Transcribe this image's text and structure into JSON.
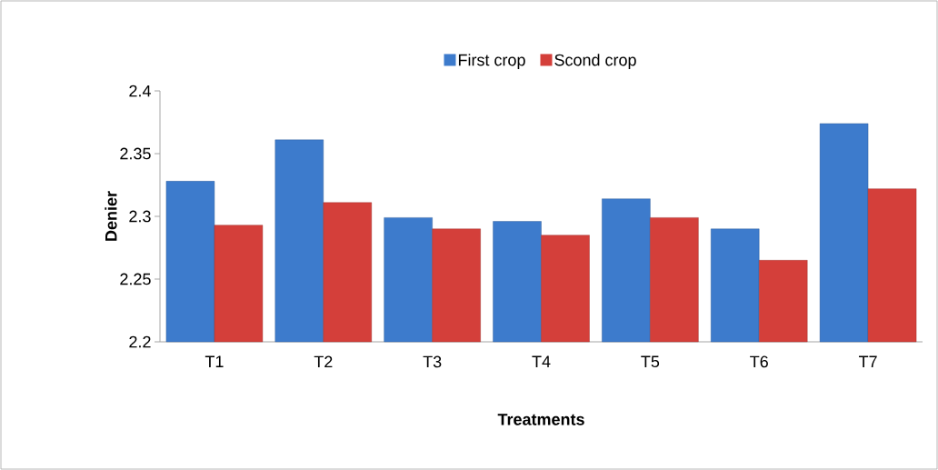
{
  "chart_data": {
    "type": "bar",
    "xlabel": "Treatments",
    "ylabel": "Denier",
    "categories": [
      "T1",
      "T2",
      "T3",
      "T4",
      "T5",
      "T6",
      "T7"
    ],
    "series": [
      {
        "name": "First crop",
        "color": "#3d7bcc",
        "values": [
          2.328,
          2.361,
          2.299,
          2.296,
          2.314,
          2.29,
          2.374
        ]
      },
      {
        "name": "Scond crop",
        "color": "#d43f3a",
        "values": [
          2.293,
          2.311,
          2.29,
          2.285,
          2.299,
          2.265,
          2.322
        ]
      }
    ],
    "ylim": [
      2.2,
      2.4
    ],
    "yticks": [
      2.2,
      2.25,
      2.3,
      2.35,
      2.4
    ],
    "grid": false,
    "legend": "top"
  }
}
